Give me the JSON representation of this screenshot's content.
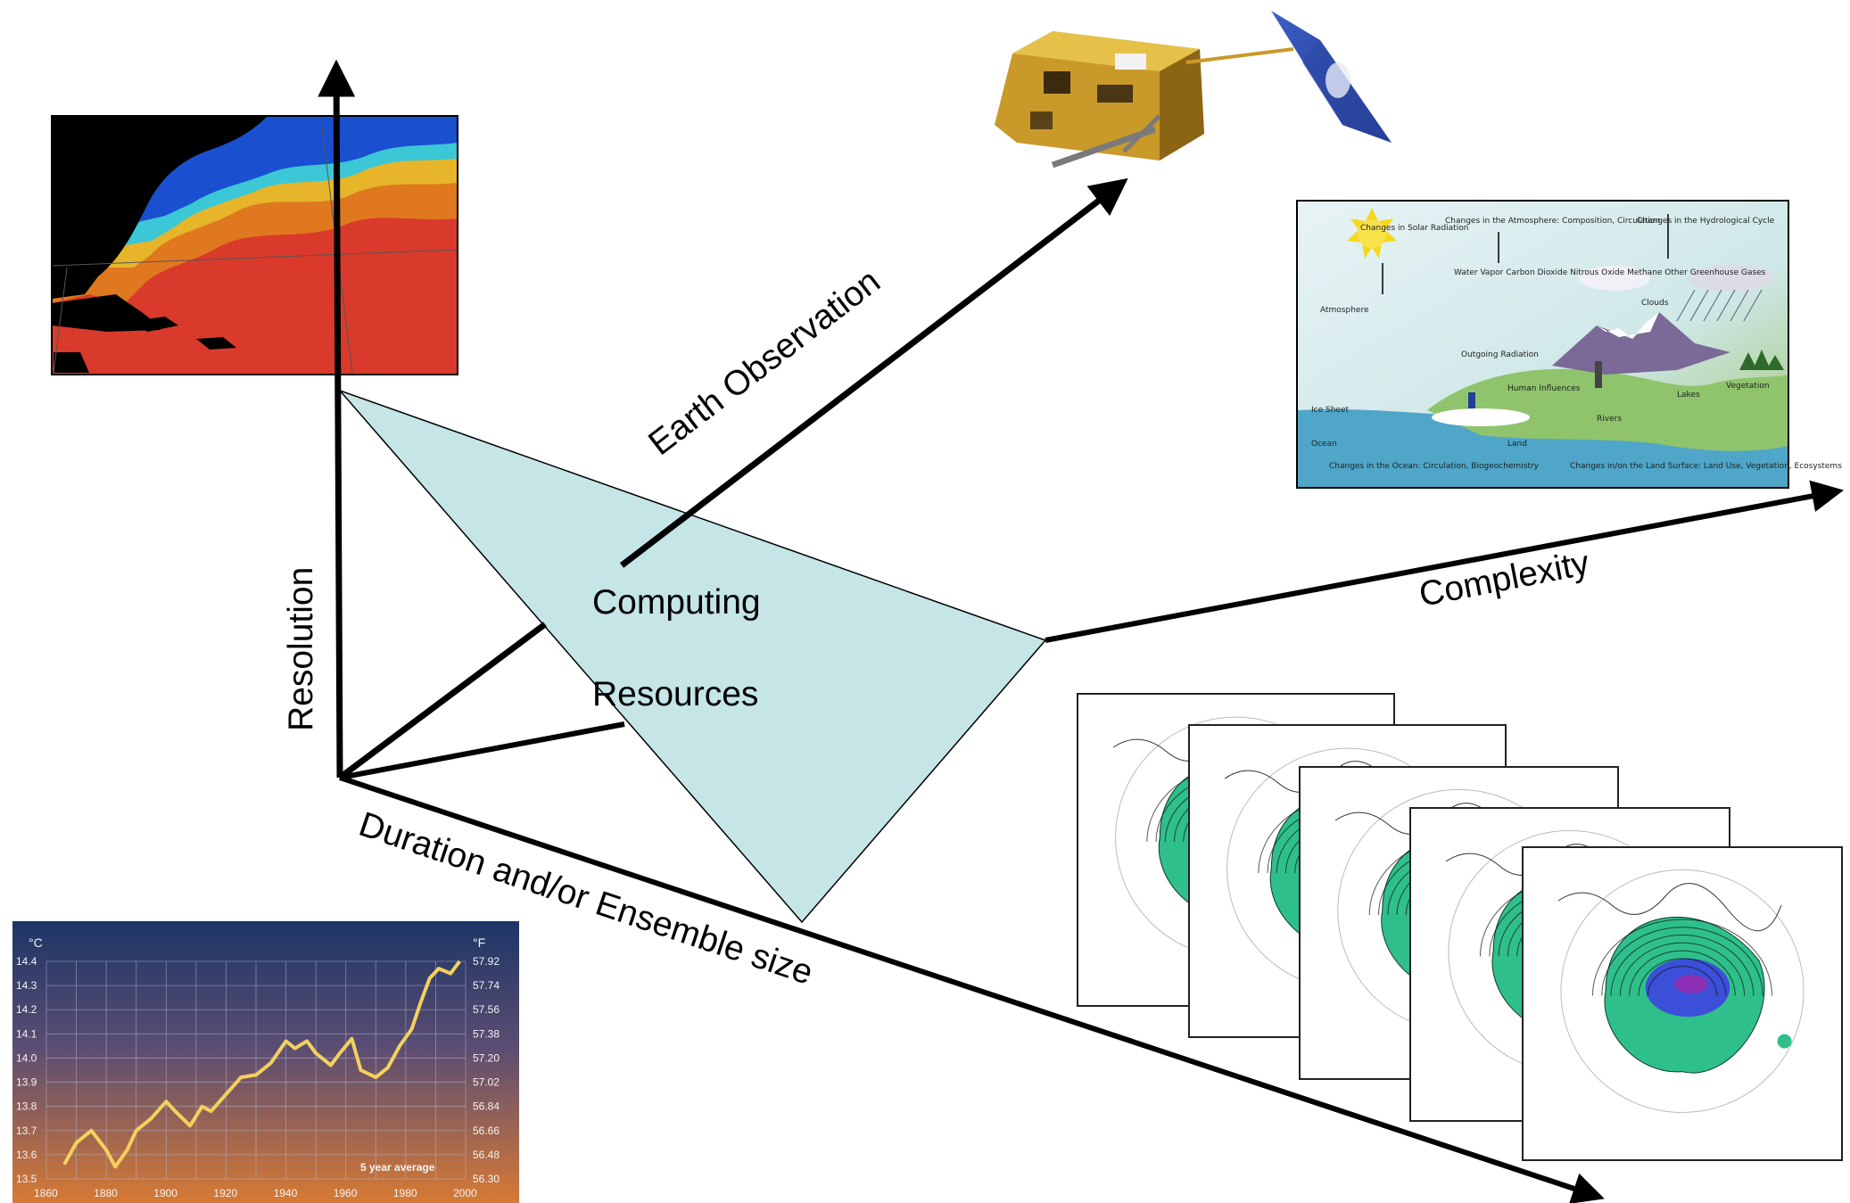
{
  "axes": {
    "resolution": "Resolution",
    "earth_observation": "Earth Observation",
    "complexity": "Complexity",
    "duration": "Duration and/or Ensemble size"
  },
  "center": {
    "line1": "Computing",
    "line2": "Resources"
  },
  "colors": {
    "plane": "#c5e5e7",
    "axis": "#000000",
    "chart_bg_top": "#1d3566",
    "chart_bg_bottom": "#d77a34",
    "chart_line": "#f3d15c"
  },
  "icons": [
    "satellite-image",
    "ocean-temperature-map",
    "climate-system-diagram",
    "ensemble-forecast-maps",
    "temperature-chart"
  ],
  "temperature_chart": {
    "left_unit": "°C",
    "right_unit": "°F",
    "note": "5 year average",
    "chart_data": {
      "type": "line",
      "x": [
        1866,
        1870,
        1875,
        1880,
        1883,
        1887,
        1890,
        1895,
        1900,
        1903,
        1908,
        1912,
        1915,
        1920,
        1925,
        1930,
        1935,
        1940,
        1943,
        1947,
        1950,
        1955,
        1958,
        1962,
        1965,
        1970,
        1974,
        1978,
        1982,
        1985,
        1988,
        1991,
        1995,
        1998
      ],
      "values": [
        13.56,
        13.65,
        13.7,
        13.62,
        13.55,
        13.62,
        13.7,
        13.75,
        13.82,
        13.78,
        13.72,
        13.8,
        13.78,
        13.85,
        13.92,
        13.93,
        13.98,
        14.07,
        14.04,
        14.07,
        14.02,
        13.97,
        14.02,
        14.08,
        13.95,
        13.92,
        13.96,
        14.05,
        14.12,
        14.23,
        14.33,
        14.37,
        14.35,
        14.4
      ],
      "xlabel": "",
      "ylabel": "",
      "ylim": [
        13.5,
        14.4
      ],
      "xlim": [
        1860,
        2000
      ],
      "y_ticks": [
        "14.4",
        "14.3",
        "14.2",
        "14.1",
        "14.0",
        "13.9",
        "13.8",
        "13.7",
        "13.6",
        "13.5"
      ],
      "y_ticks_right": [
        "57.92",
        "57.74",
        "57.56",
        "57.38",
        "57.20",
        "57.02",
        "56.84",
        "56.66",
        "56.48",
        "56.30"
      ],
      "x_ticks": [
        "1860",
        "1880",
        "1900",
        "1920",
        "1940",
        "1960",
        "1980",
        "2000"
      ],
      "grid": true
    }
  },
  "climate_diagram_labels": {
    "a": "Changes in Solar Radiation",
    "b": "Changes in the Atmosphere: Composition, Circulation",
    "c": "Changes in the Hydrological Cycle",
    "d": "Water Vapor Carbon Dioxide Nitrous Oxide Methane Other Greenhouse Gases",
    "e": "Clouds",
    "f": "Atmosphere",
    "g": "Outgoing Radiation",
    "h": "Human Influences",
    "i": "Ice Sheet",
    "j": "Ocean",
    "k": "Land",
    "l": "Rivers",
    "m": "Lakes",
    "n": "Vegetation",
    "o": "Changes in the Ocean: Circulation, Biogeochemistry",
    "p": "Changes in/on the Land Surface: Land Use, Vegetation, Ecosystems"
  }
}
